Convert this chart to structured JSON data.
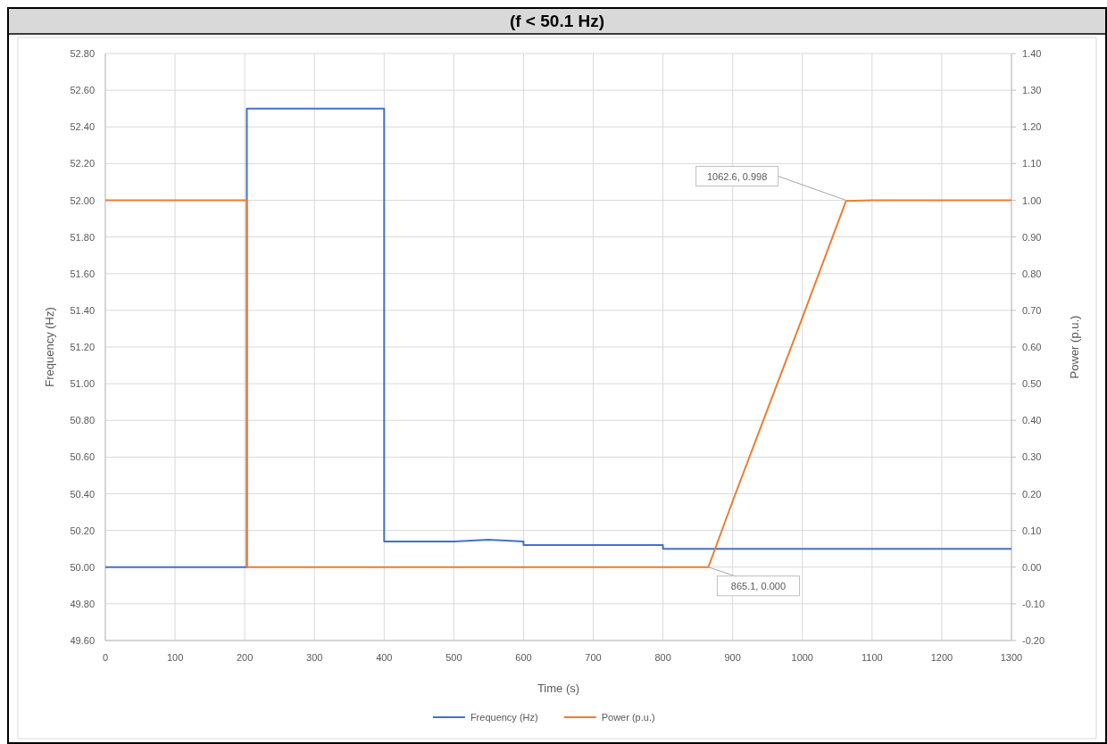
{
  "chart_data": {
    "type": "line",
    "title": "(f < 50.1 Hz)",
    "xlabel": "Time (s)",
    "ylabel": "Frequency (Hz)",
    "y2label": "Power (p.u.)",
    "series": [
      {
        "name": "Frequency (Hz)",
        "color": "#4472c4",
        "x": [
          0,
          50,
          100,
          150,
          203,
          203,
          250,
          300,
          350,
          400,
          400,
          450,
          500,
          550,
          600,
          600,
          700,
          800,
          800,
          900,
          1000,
          1065,
          1100,
          1200,
          1300
        ],
        "values": [
          50.0,
          50.0,
          50.0,
          50.0,
          50.0,
          52.5,
          52.5,
          52.5,
          52.5,
          52.5,
          50.14,
          50.14,
          50.14,
          50.15,
          50.14,
          50.12,
          50.12,
          50.12,
          50.1,
          50.1,
          50.1,
          50.1,
          50.1,
          50.1,
          50.1
        ]
      },
      {
        "name": "Power (p.u.)",
        "color": "#ed7d31",
        "axis": "y2",
        "x": [
          0,
          203,
          203,
          865.1,
          900,
          950,
          1000,
          1062.6,
          1100,
          1200,
          1300
        ],
        "values": [
          1.0,
          1.0,
          0.0,
          0.0,
          0.18,
          0.43,
          0.68,
          0.998,
          1.0,
          1.0,
          1.0
        ]
      }
    ],
    "xlim": [
      0,
      1300
    ],
    "xticks": [
      0,
      100,
      200,
      300,
      400,
      500,
      600,
      700,
      800,
      900,
      1000,
      1100,
      1200,
      1300
    ],
    "ylim": [
      49.6,
      52.8
    ],
    "yticks": [
      {
        "value": 49.6,
        "label": "49.60"
      },
      {
        "value": 49.8,
        "label": "49.80"
      },
      {
        "value": 50,
        "label": "50.00"
      },
      {
        "value": 50.2,
        "label": "50.20"
      },
      {
        "value": 50.4,
        "label": "50.40"
      },
      {
        "value": 50.6,
        "label": "50.60"
      },
      {
        "value": 50.8,
        "label": "50.80"
      },
      {
        "value": 51,
        "label": "51.00"
      },
      {
        "value": 51.2,
        "label": "51.20"
      },
      {
        "value": 51.4,
        "label": "51.40"
      },
      {
        "value": 51.6,
        "label": "51.60"
      },
      {
        "value": 51.8,
        "label": "51.80"
      },
      {
        "value": 52,
        "label": "52.00"
      },
      {
        "value": 52.2,
        "label": "52.20"
      },
      {
        "value": 52.4,
        "label": "52.40"
      },
      {
        "value": 52.6,
        "label": "52.60"
      },
      {
        "value": 52.8,
        "label": "52.80"
      }
    ],
    "y2lim": [
      -0.2,
      1.4
    ],
    "y2ticks": [
      {
        "value": -0.2,
        "label": "-0.20"
      },
      {
        "value": -0.1,
        "label": "-0.10"
      },
      {
        "value": 0,
        "label": "0.00"
      },
      {
        "value": 0.1,
        "label": "0.10"
      },
      {
        "value": 0.2,
        "label": "0.20"
      },
      {
        "value": 0.3,
        "label": "0.30"
      },
      {
        "value": 0.4,
        "label": "0.40"
      },
      {
        "value": 0.5,
        "label": "0.50"
      },
      {
        "value": 0.6,
        "label": "0.60"
      },
      {
        "value": 0.7,
        "label": "0.70"
      },
      {
        "value": 0.8,
        "label": "0.80"
      },
      {
        "value": 0.9,
        "label": "0.90"
      },
      {
        "value": 1,
        "label": "1.00"
      },
      {
        "value": 1.1,
        "label": "1.10"
      },
      {
        "value": 1.2,
        "label": "1.20"
      },
      {
        "value": 1.3,
        "label": "1.30"
      },
      {
        "value": 1.4,
        "label": "1.40"
      }
    ],
    "annotations": [
      {
        "text": "1062.6, 0.998",
        "x": 1062.6,
        "y": 52.0
      },
      {
        "text": "865.1, 0.000",
        "x": 865.1,
        "y": 50.0
      }
    ],
    "grid": true,
    "legend": "bottom",
    "marker": "none",
    "line_style": "solid"
  }
}
